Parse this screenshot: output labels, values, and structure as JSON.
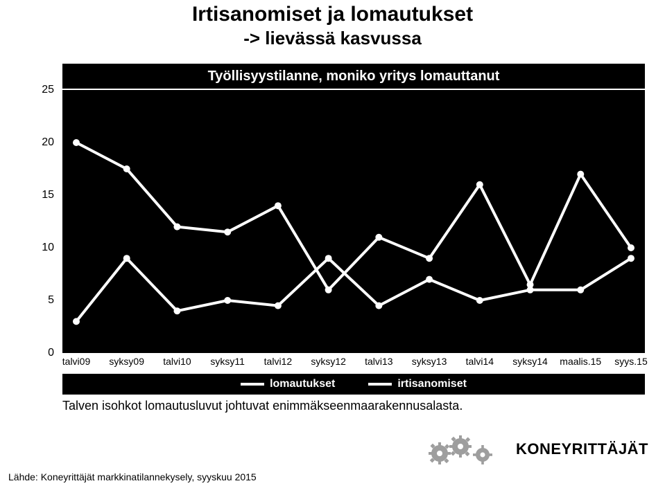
{
  "title": {
    "main": "Irtisanomiset ja lomautukset",
    "sub": "-> lievässä kasvussa"
  },
  "chart": {
    "type": "line",
    "chart_title": "Työllisyystilanne, moniko yritys lomauttanut",
    "background_color": "#000000",
    "line_color": "#ffffff",
    "line_width": 4,
    "marker_color": "#ffffff",
    "marker_size": 5,
    "ylim": [
      0,
      25
    ],
    "ytick_step": 5,
    "yticks": [
      0,
      5,
      10,
      15,
      20,
      25
    ],
    "categories": [
      "talvi09",
      "syksy09",
      "talvi10",
      "syksy11",
      "talvi12",
      "syksy12",
      "talvi13",
      "syksy13",
      "talvi14",
      "syksy14",
      "maalis.15",
      "syys.15"
    ],
    "series": [
      {
        "name": "lomautukset",
        "values": [
          20,
          17.5,
          12,
          11.5,
          14,
          6,
          11,
          9,
          16,
          6.5,
          17,
          10
        ]
      },
      {
        "name": "irtisanomiset",
        "values": [
          3,
          9,
          4,
          5,
          4.5,
          9,
          4.5,
          7,
          5,
          6,
          6,
          9
        ]
      }
    ],
    "legend_labels": [
      "lomautukset",
      "irtisanomiset"
    ],
    "legend_bg": "#000000",
    "legend_text_color": "#ffffff",
    "axis_text_color": "#000000",
    "axis_fontsize": 15
  },
  "caption": "Talven isohkot lomautusluvut johtuvat enimmäkseenmaarakennusalasta.",
  "logo": {
    "text": "KONEYRITTÄJÄT",
    "gear_colors": [
      "#9e9e9e",
      "#9e9e9e",
      "#9e9e9e"
    ]
  },
  "source": "Lähde: Koneyrittäjät markkinatilannekysely, syyskuu 2015"
}
